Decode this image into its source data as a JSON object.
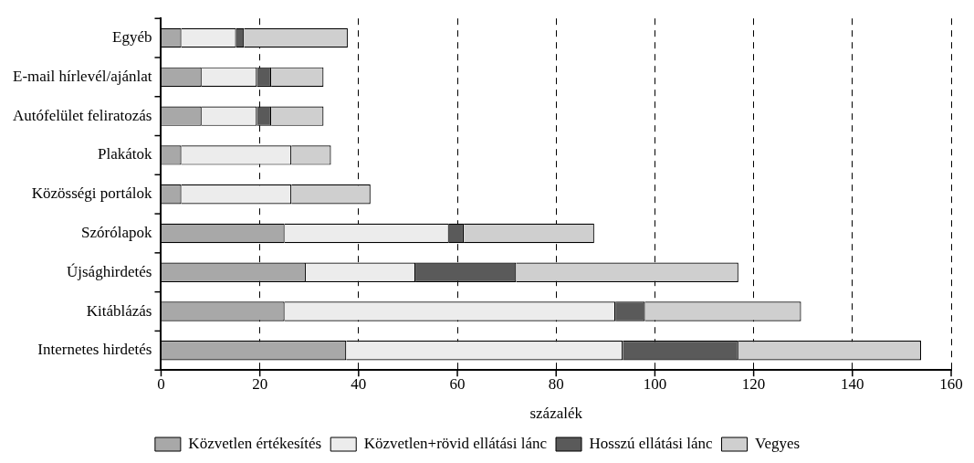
{
  "chart_data": {
    "type": "bar",
    "orientation": "horizontal",
    "stacked": true,
    "xlabel": "százalék",
    "categories": [
      "Egyéb",
      "E-mail hírlevél/ajánlat",
      "Autófelület feliratozás",
      "Plakátok",
      "Közösségi portálok",
      "Szórólapok",
      "Újsághirdetés",
      "Kitáblázás",
      "Internetes hirdetés"
    ],
    "series": [
      {
        "name": "Közvetlen értékesítés",
        "color": "#a8a8a8",
        "values": [
          4.1,
          8.2,
          8.2,
          4.1,
          4.1,
          25,
          29.3,
          25,
          37.5
        ]
      },
      {
        "name": "Közvetlen+rövid ellátási lánc",
        "color": "#ececec",
        "values": [
          11.1,
          11.2,
          11.2,
          22.3,
          22.3,
          33.3,
          22.2,
          67,
          56
        ]
      },
      {
        "name": "Hosszú ellátási lánc",
        "color": "#5a5a5a",
        "values": [
          1.6,
          2.9,
          2.9,
          0,
          0,
          3,
          20.4,
          6,
          23.4
        ]
      },
      {
        "name": "Vegyes",
        "color": "#cfcfcf",
        "values": [
          21,
          10.6,
          10.6,
          8,
          16,
          26.4,
          45,
          31.6,
          37
        ]
      }
    ],
    "xlim": [
      0,
      160
    ],
    "xticks": [
      0,
      20,
      40,
      60,
      80,
      100,
      120,
      140,
      160
    ],
    "grid": "x",
    "legend": "bottom"
  }
}
